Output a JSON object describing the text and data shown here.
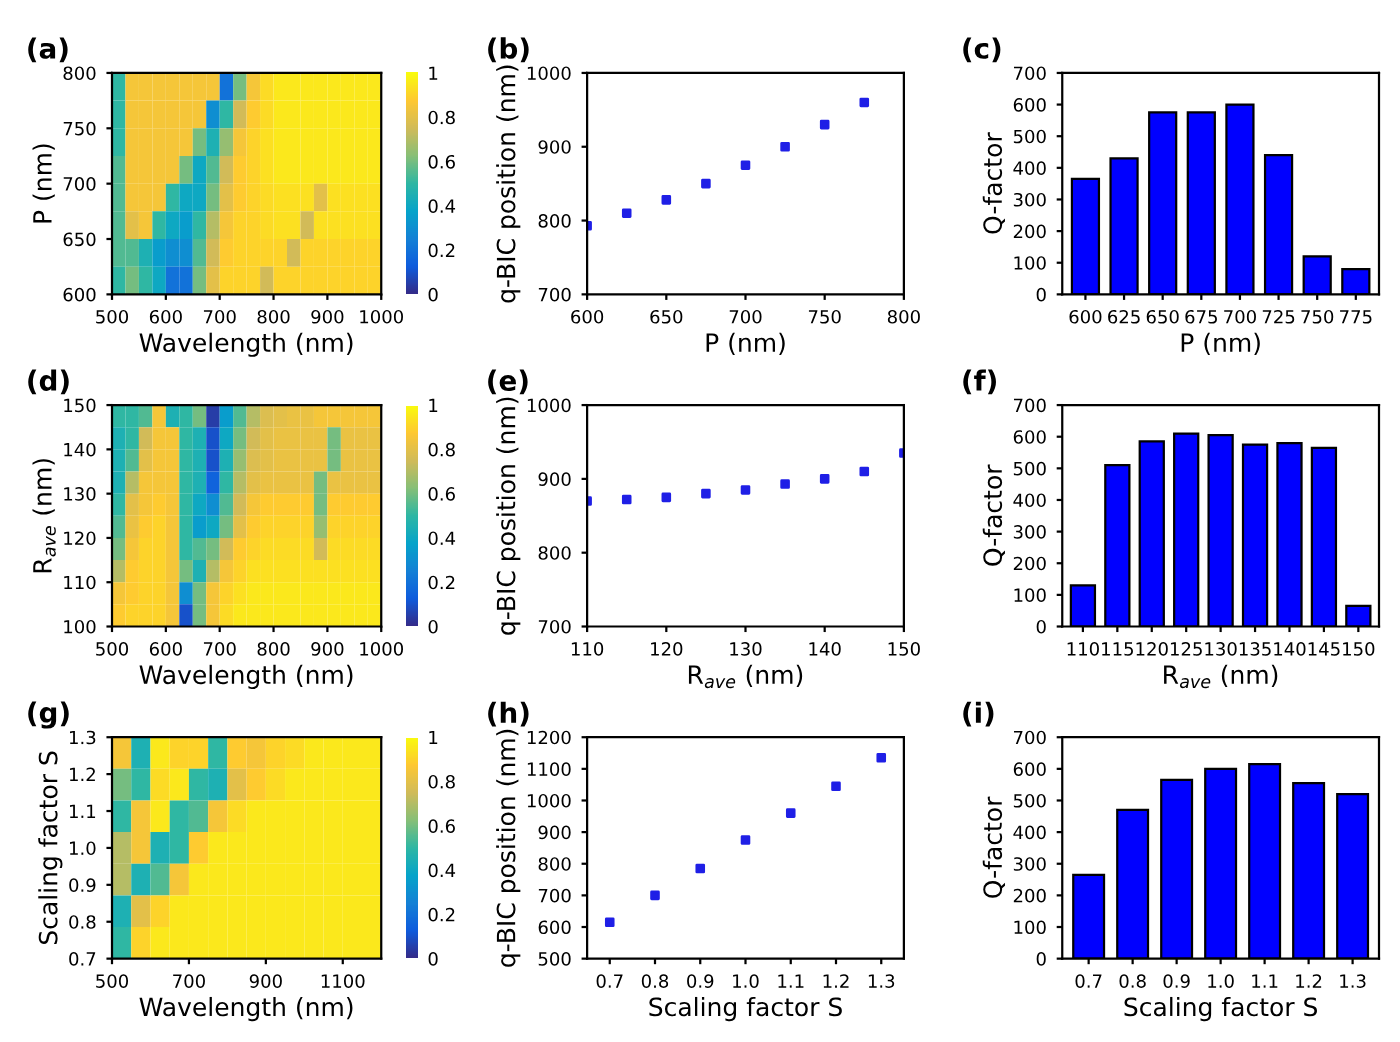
{
  "chart_data": [
    {
      "type": "heatmap",
      "title": "(a)",
      "xlabel": "Wavelength (nm)",
      "ylabel": "P (nm)",
      "cells": [
        [
          0.5,
          0.85,
          0.85,
          0.85,
          0.85,
          0.85,
          0.85,
          0.85,
          0.2,
          0.6,
          0.85,
          0.92,
          0.95,
          0.95,
          0.95,
          0.95,
          0.95,
          0.95,
          0.95,
          0.95
        ],
        [
          0.5,
          0.85,
          0.85,
          0.85,
          0.85,
          0.85,
          0.85,
          0.3,
          0.5,
          0.75,
          0.88,
          0.92,
          0.95,
          0.95,
          0.95,
          0.95,
          0.95,
          0.95,
          0.95,
          0.95
        ],
        [
          0.5,
          0.85,
          0.85,
          0.85,
          0.85,
          0.85,
          0.6,
          0.45,
          0.65,
          0.85,
          0.9,
          0.93,
          0.95,
          0.95,
          0.95,
          0.95,
          0.95,
          0.95,
          0.95,
          0.95
        ],
        [
          0.55,
          0.85,
          0.85,
          0.85,
          0.85,
          0.6,
          0.4,
          0.55,
          0.75,
          0.88,
          0.9,
          0.93,
          0.95,
          0.95,
          0.95,
          0.95,
          0.95,
          0.95,
          0.95,
          0.95
        ],
        [
          0.55,
          0.85,
          0.85,
          0.85,
          0.5,
          0.4,
          0.4,
          0.6,
          0.8,
          0.88,
          0.9,
          0.92,
          0.93,
          0.93,
          0.93,
          0.8,
          0.93,
          0.93,
          0.93,
          0.93
        ],
        [
          0.55,
          0.8,
          0.85,
          0.5,
          0.4,
          0.35,
          0.5,
          0.7,
          0.85,
          0.9,
          0.9,
          0.92,
          0.93,
          0.93,
          0.75,
          0.93,
          0.93,
          0.93,
          0.93,
          0.93
        ],
        [
          0.55,
          0.55,
          0.45,
          0.35,
          0.3,
          0.3,
          0.55,
          0.75,
          0.88,
          0.9,
          0.9,
          0.9,
          0.9,
          0.75,
          0.9,
          0.9,
          0.9,
          0.9,
          0.9,
          0.9
        ],
        [
          0.5,
          0.6,
          0.5,
          0.4,
          0.2,
          0.2,
          0.6,
          0.8,
          0.9,
          0.9,
          0.9,
          0.75,
          0.9,
          0.9,
          0.9,
          0.9,
          0.9,
          0.9,
          0.9,
          0.9
        ]
      ],
      "colors": [
        "#352a87",
        "#0f5cdd",
        "#1481d6",
        "#06a4ca",
        "#2eb7a4",
        "#87bf77",
        "#d1bb59",
        "#fec832",
        "#f9fb0e"
      ],
      "xlim": [
        500,
        1000
      ],
      "xticks": [
        500,
        600,
        700,
        800,
        900,
        1000
      ],
      "ylim": [
        600,
        800
      ],
      "yticks": [
        600,
        650,
        700,
        750,
        800
      ],
      "clim": [
        0,
        1
      ],
      "cticks": [
        0,
        0.2,
        0.4,
        0.6,
        0.8,
        1
      ]
    },
    {
      "type": "scatter",
      "title": "(b)",
      "xlabel": "P (nm)",
      "ylabel": "q-BIC position (nm)",
      "marker": "square",
      "x": [
        600,
        625,
        650,
        675,
        700,
        725,
        750,
        775
      ],
      "series": [
        {
          "color": "#1f1fe6",
          "values": [
            793,
            810,
            828,
            850,
            875,
            900,
            930,
            960
          ]
        }
      ],
      "xlim": [
        600,
        800
      ],
      "xticks": [
        600,
        650,
        700,
        750,
        800
      ],
      "ylim": [
        700,
        1000
      ],
      "yticks": [
        700,
        800,
        900,
        1000
      ]
    },
    {
      "type": "bar",
      "title": "(c)",
      "xlabel": "P (nm)",
      "ylabel": "Q-factor",
      "categories": [
        "600",
        "625",
        "650",
        "675",
        "700",
        "725",
        "750",
        "775"
      ],
      "series": [
        {
          "color": "#0000ff",
          "values": [
            365,
            430,
            575,
            575,
            600,
            440,
            120,
            80
          ]
        }
      ],
      "ylim": [
        0,
        700
      ],
      "yticks": [
        0,
        100,
        200,
        300,
        400,
        500,
        600,
        700
      ]
    },
    {
      "type": "heatmap",
      "title": "(d)",
      "xlabel": "Wavelength (nm)",
      "ylabel": "R$_{ave}$ (nm)",
      "cells": [
        [
          0.5,
          0.5,
          0.55,
          0.85,
          0.45,
          0.5,
          0.6,
          0.05,
          0.35,
          0.55,
          0.7,
          0.78,
          0.8,
          0.82,
          0.82,
          0.85,
          0.85,
          0.85,
          0.85,
          0.85
        ],
        [
          0.45,
          0.5,
          0.75,
          0.85,
          0.85,
          0.5,
          0.45,
          0.1,
          0.4,
          0.6,
          0.75,
          0.8,
          0.82,
          0.82,
          0.82,
          0.82,
          0.6,
          0.82,
          0.82,
          0.82
        ],
        [
          0.45,
          0.55,
          0.8,
          0.85,
          0.85,
          0.5,
          0.45,
          0.1,
          0.45,
          0.65,
          0.78,
          0.8,
          0.82,
          0.82,
          0.82,
          0.82,
          0.6,
          0.82,
          0.82,
          0.82
        ],
        [
          0.45,
          0.7,
          0.85,
          0.85,
          0.85,
          0.5,
          0.45,
          0.15,
          0.5,
          0.7,
          0.8,
          0.82,
          0.82,
          0.82,
          0.82,
          0.6,
          0.82,
          0.82,
          0.82,
          0.82
        ],
        [
          0.5,
          0.8,
          0.85,
          0.88,
          0.85,
          0.5,
          0.4,
          0.3,
          0.55,
          0.75,
          0.85,
          0.88,
          0.88,
          0.88,
          0.88,
          0.6,
          0.88,
          0.88,
          0.88,
          0.88
        ],
        [
          0.55,
          0.82,
          0.88,
          0.9,
          0.85,
          0.5,
          0.35,
          0.4,
          0.6,
          0.8,
          0.88,
          0.9,
          0.9,
          0.9,
          0.9,
          0.65,
          0.9,
          0.9,
          0.9,
          0.9
        ],
        [
          0.6,
          0.85,
          0.9,
          0.9,
          0.85,
          0.5,
          0.55,
          0.6,
          0.75,
          0.88,
          0.9,
          0.92,
          0.92,
          0.92,
          0.92,
          0.75,
          0.92,
          0.92,
          0.92,
          0.92
        ],
        [
          0.7,
          0.88,
          0.9,
          0.9,
          0.85,
          0.6,
          0.45,
          0.7,
          0.85,
          0.9,
          0.93,
          0.93,
          0.93,
          0.93,
          0.93,
          0.93,
          0.93,
          0.93,
          0.93,
          0.93
        ],
        [
          0.85,
          0.88,
          0.9,
          0.9,
          0.85,
          0.3,
          0.6,
          0.85,
          0.9,
          0.93,
          0.95,
          0.95,
          0.95,
          0.95,
          0.95,
          0.95,
          0.95,
          0.95,
          0.95,
          0.95
        ],
        [
          0.88,
          0.9,
          0.9,
          0.9,
          0.85,
          0.1,
          0.6,
          0.85,
          0.92,
          0.95,
          0.95,
          0.95,
          0.95,
          0.95,
          0.95,
          0.95,
          0.95,
          0.95,
          0.95,
          0.95
        ]
      ],
      "colors": [
        "#352a87",
        "#0f5cdd",
        "#1481d6",
        "#06a4ca",
        "#2eb7a4",
        "#87bf77",
        "#d1bb59",
        "#fec832",
        "#f9fb0e"
      ],
      "xlim": [
        500,
        1000
      ],
      "xticks": [
        500,
        600,
        700,
        800,
        900,
        1000
      ],
      "ylim": [
        100,
        150
      ],
      "yticks": [
        100,
        110,
        120,
        130,
        140,
        150
      ],
      "clim": [
        0,
        1
      ],
      "cticks": [
        0,
        0.2,
        0.4,
        0.6,
        0.8,
        1
      ]
    },
    {
      "type": "scatter",
      "title": "(e)",
      "xlabel": "R$_{ave}$ (nm)",
      "ylabel": "q-BIC position (nm)",
      "marker": "square",
      "x": [
        110,
        115,
        120,
        125,
        130,
        135,
        140,
        145,
        150
      ],
      "series": [
        {
          "color": "#1f1fe6",
          "values": [
            870,
            872,
            875,
            880,
            885,
            893,
            900,
            910,
            935
          ]
        }
      ],
      "xlim": [
        110,
        150
      ],
      "xticks": [
        110,
        120,
        130,
        140,
        150
      ],
      "ylim": [
        700,
        1000
      ],
      "yticks": [
        700,
        800,
        900,
        1000
      ]
    },
    {
      "type": "bar",
      "title": "(f)",
      "xlabel": "R$_{ave}$ (nm)",
      "ylabel": "Q-factor",
      "categories": [
        "110",
        "115",
        "120",
        "125",
        "130",
        "135",
        "140",
        "145",
        "150"
      ],
      "series": [
        {
          "color": "#0000ff",
          "values": [
            130,
            510,
            585,
            610,
            605,
            575,
            580,
            565,
            65
          ]
        }
      ],
      "ylim": [
        0,
        700
      ],
      "yticks": [
        0,
        100,
        200,
        300,
        400,
        500,
        600,
        700
      ]
    },
    {
      "type": "heatmap",
      "title": "(g)",
      "xlabel": "Wavelength (nm)",
      "ylabel": "Scaling factor S",
      "cells": [
        [
          0.85,
          0.45,
          0.95,
          0.9,
          0.9,
          0.5,
          0.88,
          0.85,
          0.9,
          0.92,
          0.95,
          0.95,
          0.95,
          0.95
        ],
        [
          0.6,
          0.5,
          0.92,
          0.95,
          0.5,
          0.45,
          0.8,
          0.88,
          0.92,
          0.95,
          0.95,
          0.95,
          0.95,
          0.95
        ],
        [
          0.5,
          0.85,
          0.95,
          0.5,
          0.55,
          0.85,
          0.92,
          0.95,
          0.95,
          0.95,
          0.95,
          0.95,
          0.95,
          0.95
        ],
        [
          0.7,
          0.85,
          0.45,
          0.5,
          0.88,
          0.95,
          0.95,
          0.95,
          0.95,
          0.95,
          0.95,
          0.95,
          0.95,
          0.95
        ],
        [
          0.7,
          0.45,
          0.55,
          0.85,
          0.95,
          0.95,
          0.95,
          0.95,
          0.95,
          0.95,
          0.95,
          0.95,
          0.95,
          0.95
        ],
        [
          0.45,
          0.8,
          0.9,
          0.95,
          0.95,
          0.95,
          0.95,
          0.95,
          0.95,
          0.95,
          0.95,
          0.95,
          0.95,
          0.95
        ],
        [
          0.5,
          0.9,
          0.95,
          0.95,
          0.95,
          0.95,
          0.95,
          0.95,
          0.95,
          0.95,
          0.95,
          0.95,
          0.95,
          0.95
        ]
      ],
      "colors": [
        "#352a87",
        "#0f5cdd",
        "#1481d6",
        "#06a4ca",
        "#2eb7a4",
        "#87bf77",
        "#d1bb59",
        "#fec832",
        "#f9fb0e"
      ],
      "xlim": [
        500,
        1200
      ],
      "xticks": [
        500,
        700,
        900,
        1100
      ],
      "ylim": [
        0.7,
        1.3
      ],
      "yticks": [
        0.7,
        0.8,
        0.9,
        {
          "value": 1,
          "label": "1.0"
        },
        1.1,
        1.2,
        1.3
      ],
      "clim": [
        0,
        1
      ],
      "cticks": [
        0,
        0.2,
        0.4,
        0.6,
        0.8,
        1
      ]
    },
    {
      "type": "scatter",
      "title": "(h)",
      "xlabel": "Scaling factor S",
      "ylabel": "q-BIC position (nm)",
      "marker": "square",
      "x": [
        0.7,
        0.8,
        0.9,
        1.0,
        1.1,
        1.2,
        1.3
      ],
      "series": [
        {
          "color": "#1f1fe6",
          "values": [
            615,
            700,
            785,
            875,
            960,
            1045,
            1135
          ]
        }
      ],
      "xlim": [
        0.65,
        1.35
      ],
      "xticks": [
        0.7,
        0.8,
        0.9,
        {
          "value": 1,
          "label": "1.0"
        },
        1.1,
        1.2,
        1.3
      ],
      "ylim": [
        500,
        1200
      ],
      "yticks": [
        500,
        600,
        700,
        800,
        900,
        1000,
        1100,
        1200
      ]
    },
    {
      "type": "bar",
      "title": "(i)",
      "xlabel": "Scaling factor S",
      "ylabel": "Q-factor",
      "categories": [
        "0.7",
        "0.8",
        "0.9",
        "1.0",
        "1.1",
        "1.2",
        "1.3"
      ],
      "series": [
        {
          "color": "#0000ff",
          "values": [
            265,
            470,
            565,
            600,
            615,
            555,
            520
          ]
        }
      ],
      "ylim": [
        0,
        700
      ],
      "yticks": [
        0,
        100,
        200,
        300,
        400,
        500,
        600,
        700
      ]
    }
  ]
}
